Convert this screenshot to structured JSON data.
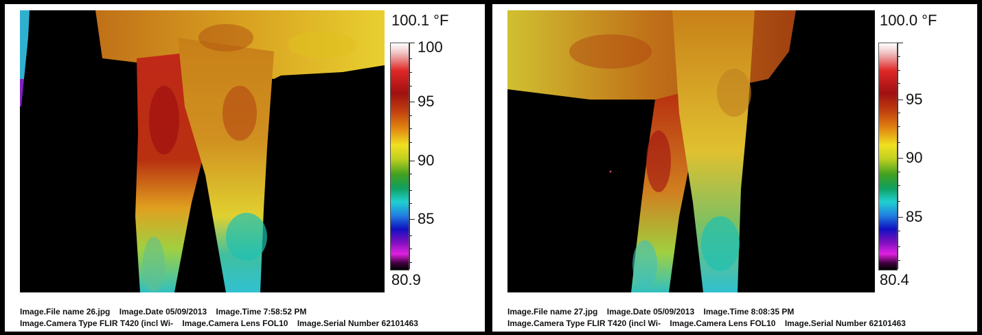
{
  "panels": [
    {
      "max_label": "100.1 °F",
      "min_label": "80.9",
      "ticks": [
        "100",
        "95",
        "90",
        "85"
      ],
      "meta": {
        "file": "Image.File name 26.jpg",
        "date": "Image.Date 05/09/2013",
        "time": "Image.Time 7:58:52 PM",
        "camera": "Image.Camera Type FLIR T420 (incl Wi-",
        "lens": "Image.Camera Lens FOL10",
        "serial": "Image.Serial Number 62101463"
      }
    },
    {
      "max_label": "100.0 °F",
      "min_label": "80.4",
      "ticks": [
        "95",
        "90",
        "85"
      ],
      "meta": {
        "file": "Image.File name 27.jpg",
        "date": "Image.Date 05/09/2013",
        "time": "Image.Time 8:08:35 PM",
        "camera": "Image.Camera Type FLIR T420 (incl Wi-",
        "lens": "Image.Camera Lens FOL10",
        "serial": "Image.Serial Number 62101463"
      }
    }
  ],
  "colors": {
    "hot": "#a01010",
    "warm": "#e08010",
    "mid": "#f0e020",
    "cool": "#20d0d0",
    "cold": "#1010c0",
    "background": "#000000"
  }
}
